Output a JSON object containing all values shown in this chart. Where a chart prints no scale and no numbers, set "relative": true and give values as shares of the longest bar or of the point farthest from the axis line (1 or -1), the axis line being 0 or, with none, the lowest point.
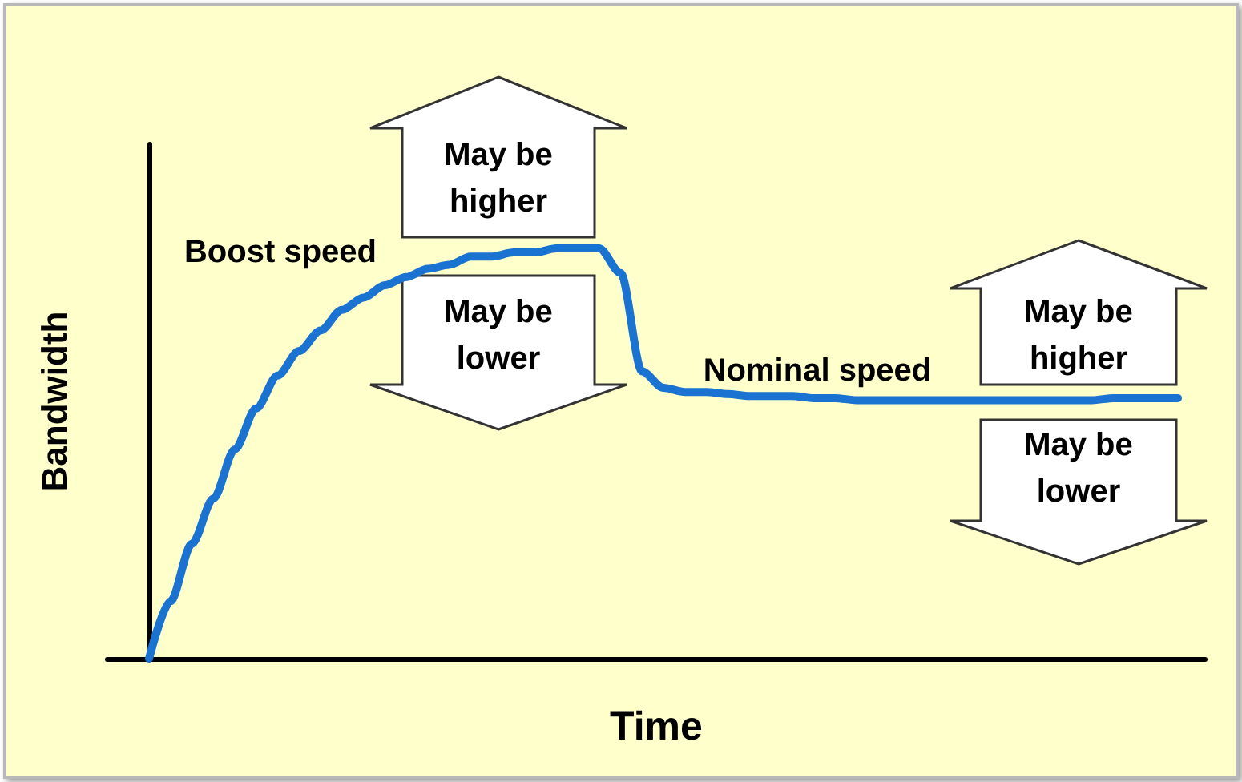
{
  "chart_data": {
    "type": "line",
    "relative": true,
    "xlabel": "Time",
    "ylabel": "Bandwidth",
    "color": "#1a73d0",
    "tick_labels": false,
    "marker": "none",
    "categories": [
      null,
      null,
      null,
      null,
      null,
      null,
      null,
      null,
      null,
      null,
      null,
      null,
      null,
      null,
      null,
      null,
      null,
      null,
      null,
      null,
      null,
      null,
      null,
      null,
      null,
      null,
      null,
      null,
      null,
      null,
      null,
      null,
      null,
      null,
      null,
      null,
      null,
      null,
      null,
      null,
      null,
      null,
      null,
      null,
      null,
      null,
      null,
      null,
      null
    ],
    "values": [
      0,
      0.14,
      0.28,
      0.39,
      0.51,
      0.61,
      0.69,
      0.75,
      0.8,
      0.85,
      0.88,
      0.91,
      0.93,
      0.95,
      0.96,
      0.98,
      0.98,
      0.99,
      0.99,
      1,
      1,
      1,
      0.94,
      0.7,
      0.66,
      0.65,
      0.65,
      0.645,
      0.64,
      0.64,
      0.64,
      0.635,
      0.635,
      0.63,
      0.63,
      0.63,
      0.63,
      0.63,
      0.63,
      0.63,
      0.63,
      0.63,
      0.63,
      0.63,
      0.63,
      0.635,
      0.635,
      0.635,
      0.635
    ],
    "annotations": [
      "Boost speed",
      "May be higher",
      "May be lower",
      "Nominal speed",
      "May be higher",
      "May be lower"
    ]
  }
}
